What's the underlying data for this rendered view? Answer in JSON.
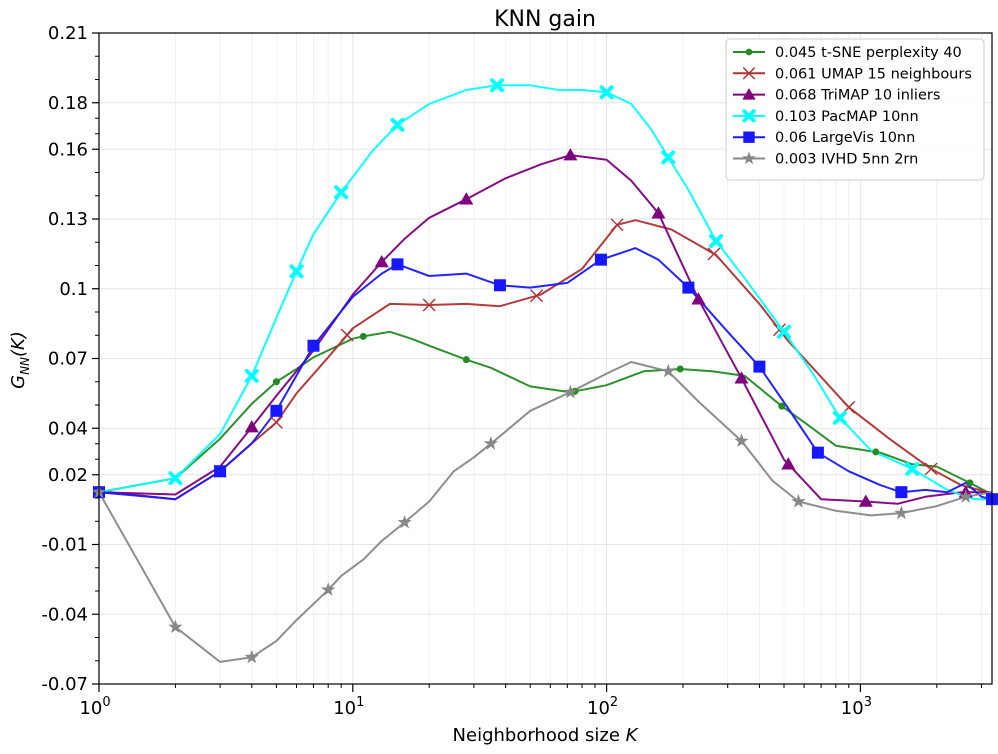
{
  "chart_data": {
    "type": "line",
    "title": "KNN gain",
    "xlabel": "Neighborhood size ",
    "xlabel_var": "K",
    "ylabel": "G",
    "ylabel_sub": "NN",
    "ylabel_arg": "(K)",
    "x_scale": "log",
    "xlim": [
      1,
      3300
    ],
    "ylim": [
      -0.07,
      0.21
    ],
    "x_ticks": [
      {
        "value": 1,
        "base": "10",
        "exp": "0"
      },
      {
        "value": 10,
        "base": "10",
        "exp": "1"
      },
      {
        "value": 100,
        "base": "10",
        "exp": "2"
      },
      {
        "value": 1000,
        "base": "10",
        "exp": "3"
      }
    ],
    "y_ticks": [
      {
        "value": -0.07,
        "label": "-0.07"
      },
      {
        "value": -0.04,
        "label": "-0.04"
      },
      {
        "value": -0.01,
        "label": "-0.01"
      },
      {
        "value": 0.02,
        "label": "0.02"
      },
      {
        "value": 0.04,
        "label": "0.04"
      },
      {
        "value": 0.07,
        "label": "0.07"
      },
      {
        "value": 0.1,
        "label": "0.1"
      },
      {
        "value": 0.13,
        "label": "0.13"
      },
      {
        "value": 0.16,
        "label": "0.16"
      },
      {
        "value": 0.18,
        "label": "0.18"
      },
      {
        "value": 0.21,
        "label": "0.21"
      }
    ],
    "grid": true,
    "legend_position": "top-right",
    "series": [
      {
        "name": "0.045 t-SNE perplexity 40",
        "color": "#228b22",
        "marker": "dot",
        "x": [
          1,
          2,
          3,
          4,
          5,
          6,
          7,
          8,
          10,
          11,
          14,
          17,
          20,
          28,
          35,
          50,
          72,
          100,
          140,
          195,
          260,
          350,
          490,
          620,
          800,
          1200,
          1600,
          2000,
          2700,
          3300
        ],
        "y": [
          0.0125,
          0.0185,
          0.0355,
          0.0505,
          0.06,
          0.0655,
          0.0705,
          0.0735,
          0.0785,
          0.0795,
          0.0815,
          0.0785,
          0.0755,
          0.0695,
          0.066,
          0.058,
          0.0555,
          0.0585,
          0.0645,
          0.0655,
          0.0645,
          0.0625,
          0.0495,
          0.0415,
          0.0325,
          0.0295,
          0.0245,
          0.0235,
          0.0165,
          0.0115
        ],
        "marker_x": [
          5,
          11,
          28,
          75,
          195,
          490,
          1150,
          2700
        ]
      },
      {
        "name": "0.061 UMAP 15 neighbours",
        "color": "#b03030",
        "marker": "x",
        "x": [
          1,
          2,
          3,
          4,
          5,
          6,
          8,
          10,
          14,
          20,
          28,
          38,
          55,
          80,
          110,
          130,
          180,
          270,
          400,
          520,
          900,
          1300,
          1900,
          2500,
          3300
        ],
        "y": [
          0.013,
          0.0095,
          0.0215,
          0.0335,
          0.0425,
          0.055,
          0.0705,
          0.083,
          0.0935,
          0.093,
          0.0935,
          0.0925,
          0.0975,
          0.1085,
          0.1275,
          0.1295,
          0.1255,
          0.1145,
          0.0935,
          0.0775,
          0.049,
          0.0355,
          0.0225,
          0.0155,
          0.012
        ],
        "marker_x": [
          3,
          5,
          9.5,
          20,
          53,
          110,
          265,
          480,
          900,
          1900
        ]
      },
      {
        "name": "0.068 TriMAP 10 inliers",
        "color": "#800080",
        "marker": "triangle",
        "x": [
          1,
          2,
          3,
          4,
          5,
          7,
          10,
          13,
          16,
          20,
          28,
          40,
          55,
          72,
          100,
          125,
          160,
          230,
          340,
          500,
          700,
          1050,
          1400,
          1800,
          2500,
          3300
        ],
        "y": [
          0.0125,
          0.0115,
          0.0235,
          0.0405,
          0.054,
          0.0735,
          0.0975,
          0.1115,
          0.1215,
          0.1305,
          0.1385,
          0.1475,
          0.1535,
          0.1575,
          0.1555,
          0.1465,
          0.1325,
          0.0955,
          0.0615,
          0.0265,
          0.0095,
          0.0085,
          0.0075,
          0.0105,
          0.0125,
          0.0125
        ],
        "marker_x": [
          4,
          13,
          28,
          72,
          160,
          230,
          340,
          520,
          1050,
          2600
        ]
      },
      {
        "name": "0.103 PacMAP 10nn",
        "color": "#00ffff",
        "marker": "X",
        "x": [
          1,
          2,
          3,
          4,
          5,
          6,
          7,
          9,
          12,
          15,
          20,
          28,
          37,
          50,
          65,
          80,
          100,
          125,
          150,
          175,
          210,
          270,
          350,
          500,
          650,
          830,
          1100,
          1600,
          2200,
          2800,
          3300
        ],
        "y": [
          0.0125,
          0.0185,
          0.0375,
          0.0625,
          0.0875,
          0.1075,
          0.1235,
          0.1415,
          0.1595,
          0.1705,
          0.1795,
          0.1855,
          0.1875,
          0.1875,
          0.1855,
          0.1855,
          0.1845,
          0.1795,
          0.1685,
          0.1565,
          0.1425,
          0.1205,
          0.1045,
          0.0815,
          0.0635,
          0.0445,
          0.0305,
          0.0225,
          0.0135,
          0.0095,
          0.0095
        ],
        "marker_x": [
          2,
          4,
          6,
          9,
          15,
          37,
          100,
          175,
          270,
          500,
          830,
          1600
        ]
      },
      {
        "name": "0.06 LargeVis 10nn",
        "color": "#1818ff",
        "marker": "square",
        "x": [
          1,
          2,
          3,
          4,
          5,
          7,
          10,
          13,
          15,
          20,
          28,
          38,
          50,
          70,
          95,
          130,
          160,
          210,
          300,
          400,
          520,
          680,
          900,
          1200,
          1450,
          1800,
          2200,
          2600,
          3000,
          3300
        ],
        "y": [
          0.0125,
          0.0095,
          0.0215,
          0.0335,
          0.0475,
          0.0755,
          0.0965,
          0.1065,
          0.1105,
          0.1055,
          0.1065,
          0.1015,
          0.1005,
          0.1025,
          0.1125,
          0.1175,
          0.1125,
          0.1005,
          0.0815,
          0.0665,
          0.0485,
          0.0295,
          0.0215,
          0.0155,
          0.0125,
          0.0135,
          0.0125,
          0.0165,
          0.0105,
          0.0095
        ],
        "marker_x": [
          1,
          3,
          5,
          7,
          15,
          38,
          95,
          210,
          400,
          680,
          1450,
          3300
        ]
      },
      {
        "name": "0.003 IVHD 5nn 2rn",
        "color": "#888888",
        "marker": "star",
        "x": [
          1,
          2,
          3,
          4,
          5,
          6,
          8,
          9,
          11,
          13,
          16,
          20,
          25,
          30,
          37,
          50,
          72,
          100,
          125,
          175,
          230,
          340,
          450,
          570,
          800,
          1100,
          1450,
          2000,
          2600,
          3300
        ],
        "y": [
          0.0125,
          -0.0455,
          -0.0605,
          -0.0585,
          -0.0515,
          -0.0425,
          -0.0295,
          -0.0235,
          -0.0165,
          -0.0085,
          -0.0005,
          0.0085,
          0.0215,
          0.0275,
          0.0355,
          0.0475,
          0.0555,
          0.0635,
          0.0685,
          0.0645,
          0.0515,
          0.0345,
          0.0175,
          0.0085,
          0.0045,
          0.0025,
          0.0035,
          0.0065,
          0.0105,
          0.0125
        ],
        "marker_x": [
          1,
          2,
          4,
          8,
          16,
          35,
          72,
          175,
          340,
          570,
          1450,
          2600
        ]
      }
    ]
  }
}
